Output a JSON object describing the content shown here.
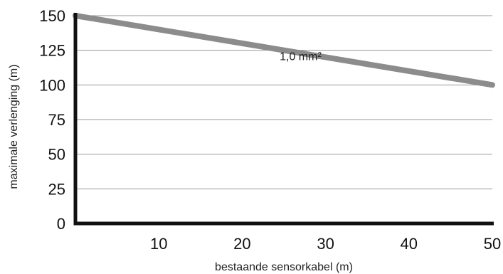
{
  "chart_data": {
    "type": "line",
    "title": "",
    "xlabel": "bestaande sensorkabel (m)",
    "ylabel": "maximale verlenging (m)",
    "xlim": [
      0,
      50
    ],
    "ylim": [
      0,
      150
    ],
    "x_ticks": [
      10,
      20,
      30,
      40,
      50
    ],
    "y_ticks": [
      0,
      25,
      50,
      75,
      100,
      125,
      150
    ],
    "grid": "horizontal",
    "series": [
      {
        "x": [
          0,
          50
        ],
        "y": [
          150,
          100
        ],
        "color": "#8c8c8c"
      }
    ],
    "annotations": [
      {
        "text": "1,0 mm²",
        "x": 27,
        "y": 121
      }
    ],
    "colors": {
      "line": "#8c8c8c",
      "grid": "#999999",
      "axis": "#111111"
    }
  }
}
